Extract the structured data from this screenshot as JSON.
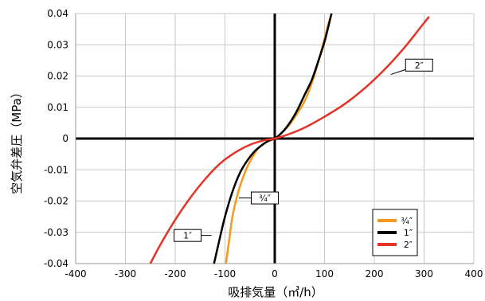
{
  "chart_data": {
    "type": "line",
    "title": "",
    "xlabel": "吸排気量（㎥/h）",
    "ylabel": "空気弁差圧（MPa）",
    "xlim": [
      -400,
      400
    ],
    "ylim": [
      -0.04,
      0.04
    ],
    "x_ticks": [
      "-400",
      "-300",
      "-200",
      "-100",
      "0",
      "100",
      "200",
      "300",
      "400"
    ],
    "y_ticks": [
      "0.04",
      "0.03",
      "0.02",
      "0.01",
      "0",
      "-0.01",
      "-0.02",
      "-0.03",
      "-0.04"
    ],
    "grid": true,
    "legend": "bottom-right",
    "series": [
      {
        "name": "¾″",
        "color": "#f39a1e",
        "x": [
          -98,
          -92,
          -85,
          -75,
          -65,
          -55,
          -45,
          -35,
          -25,
          -15,
          0,
          15,
          30,
          45,
          60,
          75,
          90,
          100,
          110,
          115
        ],
        "y": [
          -0.04,
          -0.033,
          -0.025,
          -0.018,
          -0.013,
          -0.009,
          -0.006,
          -0.0035,
          -0.002,
          -0.001,
          0,
          0.002,
          0.0045,
          0.008,
          0.012,
          0.018,
          0.026,
          0.032,
          0.038,
          0.04
        ]
      },
      {
        "name": "1″",
        "color": "#000000",
        "x": [
          -122,
          -112,
          -100,
          -85,
          -70,
          -55,
          -40,
          -25,
          -10,
          0,
          15,
          30,
          45,
          60,
          75,
          90,
          100,
          108,
          114
        ],
        "y": [
          -0.04,
          -0.033,
          -0.025,
          -0.017,
          -0.011,
          -0.007,
          -0.004,
          -0.002,
          -0.0005,
          0,
          0.002,
          0.005,
          0.009,
          0.014,
          0.019,
          0.026,
          0.031,
          0.036,
          0.04
        ]
      },
      {
        "name": "2″",
        "color": "#e63228",
        "x": [
          -250,
          -230,
          -200,
          -170,
          -140,
          -110,
          -80,
          -50,
          -20,
          0,
          30,
          60,
          100,
          140,
          180,
          220,
          260,
          290,
          310
        ],
        "y": [
          -0.04,
          -0.034,
          -0.026,
          -0.019,
          -0.013,
          -0.008,
          -0.0045,
          -0.002,
          -0.0005,
          0,
          0.0015,
          0.0035,
          0.007,
          0.011,
          0.016,
          0.022,
          0.029,
          0.035,
          0.039
        ]
      }
    ],
    "annotations": [
      {
        "text": "2″",
        "x": 290,
        "y": 0.0235,
        "anchor": [
          233,
          0.0205
        ]
      },
      {
        "text": "¾″",
        "x": -20,
        "y": -0.019,
        "anchor": [
          -72,
          -0.019
        ]
      },
      {
        "text": "1″",
        "x": -175,
        "y": -0.031,
        "anchor": [
          -127,
          -0.031
        ]
      }
    ]
  }
}
